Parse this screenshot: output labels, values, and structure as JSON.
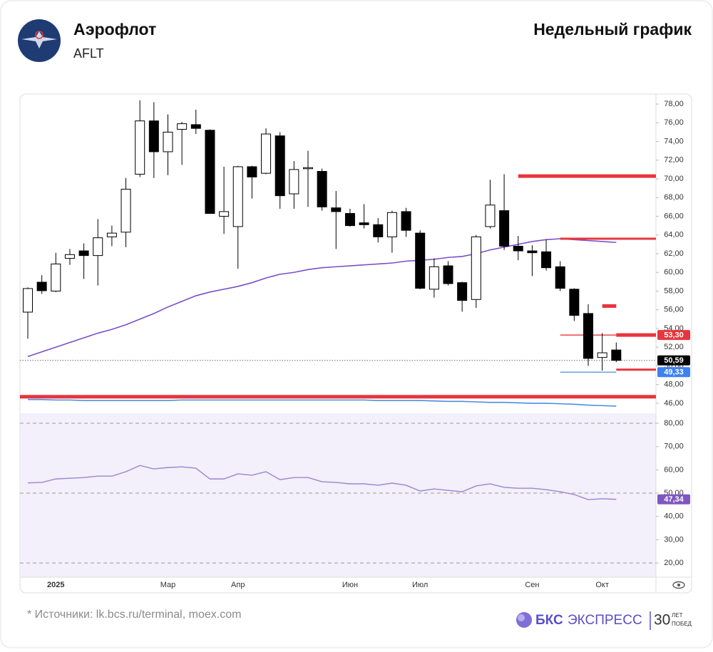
{
  "header": {
    "company": "Аэрофлот",
    "ticker": "AFLT",
    "chart_label": "Недельный график"
  },
  "chart_data": {
    "type": "candlestick",
    "categories": [
      null,
      null,
      "2025",
      null,
      null,
      null,
      null,
      null,
      null,
      null,
      "Мар",
      null,
      null,
      null,
      null,
      "Апр",
      null,
      null,
      null,
      null,
      null,
      null,
      null,
      "Июн",
      null,
      null,
      null,
      null,
      "Июл",
      null,
      null,
      null,
      null,
      null,
      null,
      null,
      "Сен",
      null,
      null,
      null,
      null,
      "Окт",
      null
    ],
    "open": [
      55.75,
      58.95,
      58.0,
      61.5,
      62.3,
      61.8,
      63.8,
      64.3,
      70.5,
      76.2,
      72.9,
      75.3,
      75.8,
      75.2,
      66.0,
      64.9,
      71.3,
      70.6,
      74.6,
      68.4,
      71.1,
      70.8,
      66.9,
      66.3,
      65.3,
      65.1,
      63.8,
      66.5,
      64.2,
      58.2,
      60.7,
      58.9,
      57.1,
      64.9,
      66.6,
      62.8,
      62.3,
      62.2,
      60.6,
      58.2,
      55.6,
      50.9,
      51.7
    ],
    "high": [
      58.4,
      59.7,
      62.1,
      62.5,
      63.1,
      65.7,
      65.0,
      70.1,
      78.4,
      78.2,
      76.9,
      76.1,
      77.4,
      75.3,
      71.3,
      71.4,
      71.4,
      75.4,
      75.0,
      71.9,
      73.0,
      71.1,
      68.7,
      66.8,
      67.3,
      65.8,
      66.6,
      66.9,
      64.5,
      61.5,
      61.2,
      59.0,
      64.0,
      69.9,
      70.5,
      63.9,
      62.9,
      63.5,
      61.2,
      58.3,
      56.6,
      53.5,
      52.5
    ],
    "low": [
      52.9,
      57.7,
      57.9,
      60.8,
      59.3,
      58.6,
      62.8,
      62.7,
      70.2,
      70.1,
      70.4,
      71.5,
      74.8,
      66.3,
      64.1,
      60.4,
      67.9,
      70.5,
      66.8,
      66.8,
      67.0,
      66.6,
      62.5,
      64.9,
      64.7,
      63.2,
      62.1,
      63.8,
      58.2,
      57.3,
      58.6,
      55.8,
      56.2,
      64.7,
      62.4,
      61.3,
      59.6,
      60.2,
      58.0,
      54.8,
      50.0,
      49.5,
      50.4
    ],
    "close": [
      58.27,
      58.04,
      60.9,
      61.9,
      61.8,
      63.7,
      64.2,
      68.9,
      76.2,
      72.9,
      75.0,
      75.9,
      75.4,
      66.3,
      66.5,
      71.3,
      70.2,
      74.8,
      68.2,
      71.0,
      71.2,
      67.0,
      66.5,
      65.0,
      65.1,
      63.8,
      66.4,
      64.5,
      58.3,
      60.6,
      58.8,
      57.0,
      63.8,
      67.2,
      62.8,
      62.3,
      62.1,
      60.5,
      58.3,
      55.4,
      50.8,
      51.4,
      50.59
    ],
    "up_color": "#ffffff",
    "down_color": "#000000",
    "series": [
      {
        "color": "#7a4fc9",
        "values": [
          51.0,
          51.5,
          52.0,
          52.5,
          53.0,
          53.5,
          53.9,
          54.4,
          55.0,
          55.6,
          56.3,
          56.9,
          57.5,
          57.9,
          58.2,
          58.5,
          58.9,
          59.4,
          59.8,
          60.0,
          60.3,
          60.5,
          60.6,
          60.7,
          60.8,
          60.9,
          61.0,
          61.2,
          61.3,
          61.4,
          61.6,
          61.7,
          62.0,
          62.4,
          62.7,
          63.0,
          63.3,
          63.5,
          63.6,
          63.5,
          63.4,
          63.3,
          63.2
        ]
      },
      {
        "color": "#4a8fe0",
        "values": [
          46.4,
          46.4,
          46.35,
          46.35,
          46.3,
          46.3,
          46.3,
          46.3,
          46.3,
          46.3,
          46.3,
          46.35,
          46.35,
          46.35,
          46.35,
          46.35,
          46.35,
          46.35,
          46.35,
          46.35,
          46.35,
          46.35,
          46.35,
          46.35,
          46.35,
          46.3,
          46.3,
          46.3,
          46.3,
          46.25,
          46.2,
          46.2,
          46.15,
          46.1,
          46.1,
          46.05,
          46.0,
          46.0,
          45.95,
          45.9,
          45.8,
          45.75,
          45.7
        ]
      }
    ],
    "levels": [
      {
        "value": 70.3,
        "color": "#e8353d",
        "style": "thick",
        "from": 35
      },
      {
        "value": 63.6,
        "color": "#e8353d",
        "style": "medium",
        "from": 38
      },
      {
        "value": 56.4,
        "color": "#e8353d",
        "style": "thick",
        "from": 41,
        "to": 42
      },
      {
        "value": 53.3,
        "color": "#e8353d",
        "style": "thin",
        "from": 38,
        "to": 42
      },
      {
        "value": 53.3,
        "color": "#e8353d",
        "style": "thick",
        "from": 42
      },
      {
        "value": 49.6,
        "color": "#e8353d",
        "style": "medium",
        "from": 42
      },
      {
        "value": 49.33,
        "color": "#4a8fe0",
        "style": "thin",
        "from": 38,
        "to": 42
      },
      {
        "value": 46.7,
        "color": "#e8353d",
        "style": "thick",
        "from": 0
      }
    ],
    "price_labels": [
      {
        "value": 53.3,
        "label": "53,30",
        "color": "#e8353d"
      },
      {
        "value": 50.59,
        "label": "50,59",
        "color": "#000000"
      },
      {
        "value": 49.33,
        "label": "49,33",
        "color": "#3b82f0"
      }
    ],
    "ylim": [
      44.93,
      79.07
    ],
    "yticks": [
      {
        "value": 46,
        "label": "46,00"
      },
      {
        "value": 48,
        "label": "48,00"
      },
      {
        "value": 50,
        "label": "50,00"
      },
      {
        "value": 52,
        "label": "52,00"
      },
      {
        "value": 54,
        "label": "54,00"
      },
      {
        "value": 56,
        "label": "56,00"
      },
      {
        "value": 58,
        "label": "58,00"
      },
      {
        "value": 60,
        "label": "60,00"
      },
      {
        "value": 62,
        "label": "62,00"
      },
      {
        "value": 64,
        "label": "64,00"
      },
      {
        "value": 66,
        "label": "66,00"
      },
      {
        "value": 68,
        "label": "68,00"
      },
      {
        "value": 70,
        "label": "70,00"
      },
      {
        "value": 72,
        "label": "72,00"
      },
      {
        "value": 74,
        "label": "74,00"
      },
      {
        "value": 76,
        "label": "76,00"
      },
      {
        "value": 78,
        "label": "78,00"
      }
    ],
    "rsi": {
      "color": "#9b86cc",
      "values": [
        54.4,
        54.6,
        56.1,
        56.4,
        56.7,
        57.3,
        57.3,
        59.2,
        61.9,
        60.4,
        61.0,
        61.3,
        60.7,
        56.1,
        56.1,
        58.3,
        57.7,
        59.2,
        55.8,
        56.7,
        56.7,
        54.9,
        54.6,
        54.0,
        54.0,
        53.4,
        54.3,
        53.4,
        50.9,
        51.8,
        51.2,
        50.6,
        53.1,
        54.0,
        52.5,
        52.1,
        52.1,
        51.5,
        50.6,
        49.4,
        47.2,
        47.6,
        47.34
      ],
      "last_label": {
        "value": 47.34,
        "label": "47,34",
        "color": "#7e57c2"
      },
      "levels": [
        20,
        50,
        80
      ],
      "ylim": [
        13.9,
        84.3
      ],
      "yticks": [
        {
          "value": 20,
          "label": "20,00"
        },
        {
          "value": 30,
          "label": "30,00"
        },
        {
          "value": 40,
          "label": "40,00"
        },
        {
          "value": 50,
          "label": "50,00"
        },
        {
          "value": 60,
          "label": "60,00"
        },
        {
          "value": 70,
          "label": "70,00"
        },
        {
          "value": 80,
          "label": "80,00"
        }
      ]
    }
  },
  "footer": {
    "note": "* Источники: lk.bcs.ru/terminal, moex.com",
    "brand_bold": "БКС",
    "brand": "ЭКСПРЕСС",
    "badge": "30",
    "badge_top": "ЛЕТ",
    "badge_bottom": "ПОБЕД"
  }
}
